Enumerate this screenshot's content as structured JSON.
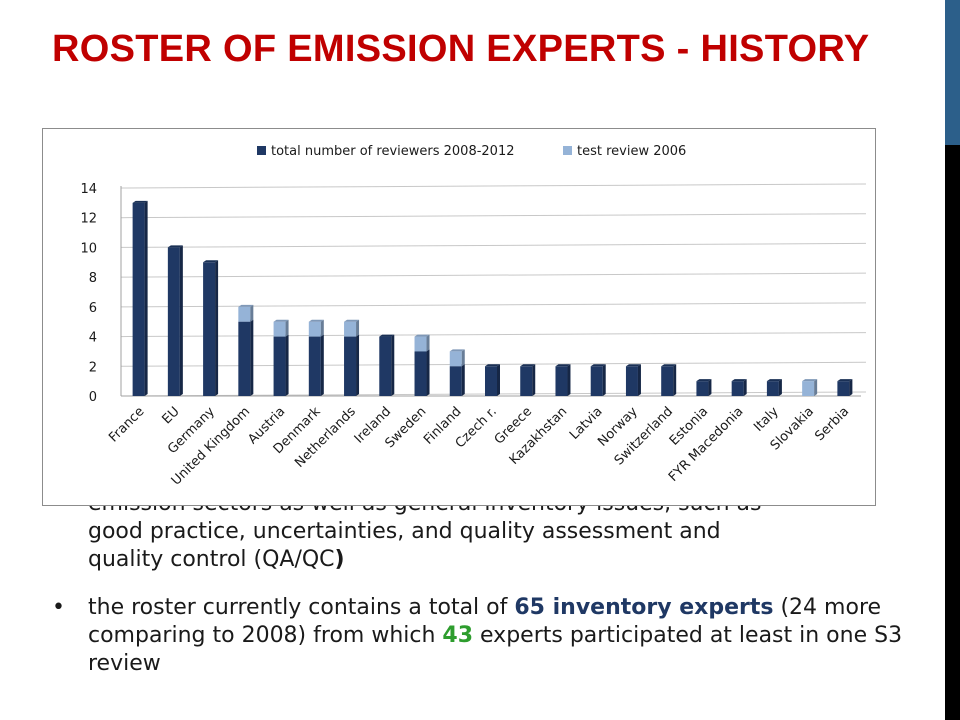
{
  "slide": {
    "title": "ROSTER OF EMISSION EXPERTS - HISTORY",
    "paragraph_cont_line1": "emission sectors as well as general inventory issues, such as",
    "paragraph_cont_line2": "good practice, uncertainties, and quality assessment and",
    "paragraph_cont_line3_text": "quality control (QA/QC",
    "paragraph_cont_line3_close": ")",
    "bullet": {
      "marker": "•",
      "part1": "the roster currently contains a total of ",
      "highlight1": "65 inventory experts",
      "part2": " (24 more comparing to 2008) from which ",
      "highlight2": "43",
      "part3": " experts participated at least in one S3 review"
    }
  },
  "colors": {
    "title": "#c00000",
    "series_total": "#1f3864",
    "series_test": "#95b3d7",
    "highlight_green": "#2e9d2e",
    "side_bar": "#000000",
    "side_accent": "#2c5f8a"
  },
  "chart_data": {
    "type": "bar",
    "stacked": true,
    "legend_position": "top",
    "grid": true,
    "ylim": [
      0,
      14
    ],
    "yticks": [
      0,
      2,
      4,
      6,
      8,
      10,
      12,
      14
    ],
    "categories": [
      "France",
      "EU",
      "Germany",
      "United Kingdom",
      "Austria",
      "Denmark",
      "Netherlands",
      "Ireland",
      "Sweden",
      "Finland",
      "Czech r.",
      "Greece",
      "Kazakhstan",
      "Latvia",
      "Norway",
      "Switzerland",
      "Estonia",
      "FYR Macedonia",
      "Italy",
      "Slovakia",
      "Serbia"
    ],
    "series": [
      {
        "name": "total number of reviewers 2008-2012",
        "values": [
          13,
          10,
          9,
          5,
          4,
          4,
          4,
          4,
          3,
          2,
          2,
          2,
          2,
          2,
          2,
          2,
          1,
          1,
          1,
          0,
          1
        ]
      },
      {
        "name": "test review 2006",
        "values": [
          0,
          0,
          0,
          1,
          1,
          1,
          1,
          0,
          1,
          1,
          0,
          0,
          0,
          0,
          0,
          0,
          0,
          0,
          0,
          1,
          0
        ]
      }
    ]
  }
}
